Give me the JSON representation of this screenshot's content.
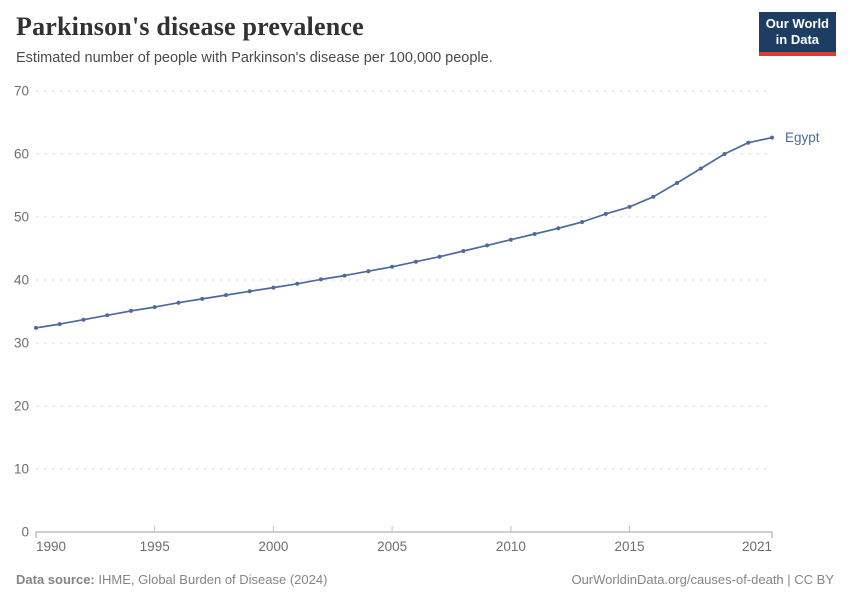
{
  "header": {
    "title": "Parkinson's disease prevalence",
    "subtitle": "Estimated number of people with Parkinson's disease per 100,000 people.",
    "logo": {
      "line1": "Our World",
      "line2": "in Data",
      "bg_color": "#1d3d63",
      "accent_color": "#dc3d33"
    }
  },
  "chart_data": {
    "type": "line",
    "title": "Parkinson's disease prevalence",
    "xlabel": "",
    "ylabel": "",
    "xlim": [
      1990,
      2021
    ],
    "ylim": [
      0,
      70
    ],
    "grid": "horizontal-dashed",
    "x_ticks": [
      1990,
      1995,
      2000,
      2005,
      2010,
      2015,
      2021
    ],
    "y_ticks": [
      0,
      10,
      20,
      30,
      40,
      50,
      60,
      70
    ],
    "x": [
      1990,
      1991,
      1992,
      1993,
      1994,
      1995,
      1996,
      1997,
      1998,
      1999,
      2000,
      2001,
      2002,
      2003,
      2004,
      2005,
      2006,
      2007,
      2008,
      2009,
      2010,
      2011,
      2012,
      2013,
      2014,
      2015,
      2016,
      2017,
      2018,
      2019,
      2020,
      2021
    ],
    "series": [
      {
        "name": "Egypt",
        "color": "#4c6a9c",
        "values": [
          32.4,
          33.0,
          33.7,
          34.4,
          35.1,
          35.7,
          36.4,
          37.0,
          37.6,
          38.2,
          38.8,
          39.4,
          40.1,
          40.7,
          41.4,
          42.1,
          42.9,
          43.7,
          44.6,
          45.5,
          46.4,
          47.3,
          48.2,
          49.2,
          50.5,
          51.6,
          53.2,
          55.4,
          57.7,
          60.0,
          61.8,
          62.6
        ]
      }
    ],
    "colors": {
      "gridline": "#dcdcdc",
      "axis": "#9e9e9e",
      "tick_label": "#6e6e6e"
    }
  },
  "footer": {
    "datasource_label": "Data source:",
    "datasource_value": "IHME, Global Burden of Disease (2024)",
    "credit": "OurWorldinData.org/causes-of-death | CC BY"
  }
}
